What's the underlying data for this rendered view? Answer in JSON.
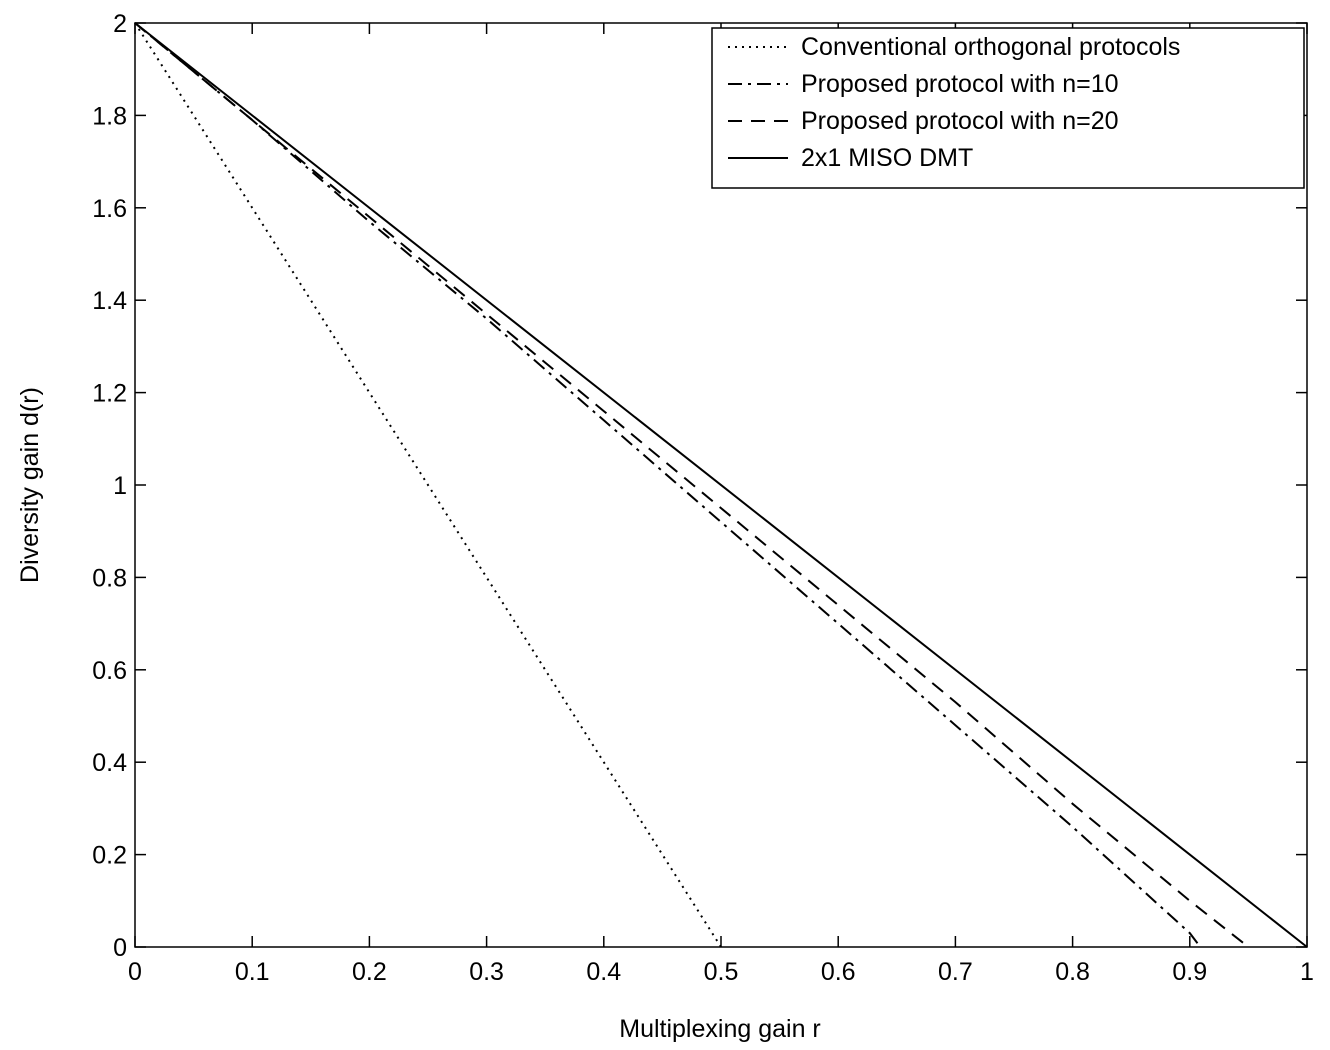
{
  "chart_data": {
    "type": "line",
    "title": "",
    "xlabel": "Multiplexing gain r",
    "ylabel": "Diversity gain d(r)",
    "xlim": [
      0,
      1
    ],
    "ylim": [
      0,
      2
    ],
    "xticks": [
      0,
      0.1,
      0.2,
      0.3,
      0.4,
      0.5,
      0.6,
      0.7,
      0.8,
      0.9,
      1
    ],
    "xtick_labels": [
      "0",
      "0.1",
      "0.2",
      "0.3",
      "0.4",
      "0.5",
      "0.6",
      "0.7",
      "0.8",
      "0.9",
      "1"
    ],
    "yticks": [
      0,
      0.2,
      0.4,
      0.6,
      0.8,
      1,
      1.2,
      1.4,
      1.6,
      1.8,
      2
    ],
    "ytick_labels": [
      "0",
      "0.2",
      "0.4",
      "0.6",
      "0.8",
      "1",
      "1.2",
      "1.4",
      "1.6",
      "1.8",
      "2"
    ],
    "grid": false,
    "legend_position": "top-right",
    "series": [
      {
        "name": "Conventional orthogonal protocols",
        "style": "dotted",
        "color": "#000000",
        "x": [
          0,
          0.5
        ],
        "y": [
          2,
          0
        ]
      },
      {
        "name": "Proposed protocol with n=10",
        "style": "dashdot",
        "color": "#000000",
        "x": [
          0,
          0.1,
          0.2,
          0.3,
          0.4,
          0.5,
          0.6,
          0.7,
          0.8,
          0.9,
          0.909
        ],
        "y": [
          2,
          1.79,
          1.57,
          1.36,
          1.14,
          0.92,
          0.7,
          0.48,
          0.26,
          0.03,
          0
        ]
      },
      {
        "name": "Proposed protocol with n=20",
        "style": "dashed",
        "color": "#000000",
        "x": [
          0,
          0.1,
          0.2,
          0.3,
          0.4,
          0.5,
          0.6,
          0.7,
          0.8,
          0.9,
          0.95
        ],
        "y": [
          2,
          1.79,
          1.58,
          1.37,
          1.16,
          0.95,
          0.74,
          0.53,
          0.31,
          0.1,
          0
        ]
      },
      {
        "name": "2x1 MISO DMT",
        "style": "solid",
        "color": "#000000",
        "x": [
          0,
          1
        ],
        "y": [
          2,
          0
        ]
      }
    ]
  }
}
